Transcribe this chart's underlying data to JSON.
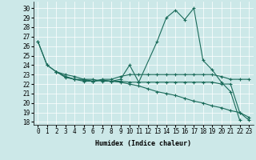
{
  "xlabel": "Humidex (Indice chaleur)",
  "bg_color": "#cce8e8",
  "grid_color": "#ffffff",
  "line_color": "#1a6b5a",
  "xlim": [
    -0.5,
    23.5
  ],
  "ylim": [
    17.7,
    30.7
  ],
  "yticks": [
    18,
    19,
    20,
    21,
    22,
    23,
    24,
    25,
    26,
    27,
    28,
    29,
    30
  ],
  "xticks": [
    0,
    1,
    2,
    3,
    4,
    5,
    6,
    7,
    8,
    9,
    10,
    11,
    12,
    13,
    14,
    15,
    16,
    17,
    18,
    19,
    20,
    21,
    22,
    23
  ],
  "lines": [
    {
      "x": [
        0,
        1,
        2,
        3,
        4,
        5,
        6,
        7,
        8,
        9,
        10,
        11,
        13,
        14,
        15,
        16,
        17,
        18,
        19,
        20,
        21,
        22
      ],
      "y": [
        26.5,
        24.0,
        23.3,
        22.8,
        22.5,
        22.3,
        22.3,
        22.4,
        22.3,
        22.5,
        24.0,
        22.2,
        26.5,
        29.0,
        29.8,
        28.8,
        30.0,
        24.5,
        23.5,
        22.2,
        21.2,
        18.2
      ]
    },
    {
      "x": [
        0,
        1,
        2,
        3,
        4,
        5,
        6,
        7,
        8,
        9,
        10,
        11,
        12,
        13,
        14,
        15,
        16,
        17,
        18,
        19,
        20,
        21,
        22,
        23
      ],
      "y": [
        26.5,
        24.0,
        23.3,
        22.7,
        22.5,
        22.4,
        22.3,
        22.4,
        22.3,
        22.3,
        22.2,
        22.2,
        22.2,
        22.2,
        22.2,
        22.2,
        22.2,
        22.2,
        22.2,
        22.2,
        22.0,
        22.0,
        19.0,
        18.2
      ]
    },
    {
      "x": [
        2,
        3,
        4,
        5,
        6,
        7,
        8,
        9,
        10,
        11,
        12,
        13,
        14,
        15,
        16,
        17,
        18,
        19,
        20,
        21,
        22,
        23
      ],
      "y": [
        23.3,
        22.8,
        22.5,
        22.5,
        22.3,
        22.5,
        22.5,
        22.8,
        23.0,
        23.0,
        23.0,
        23.0,
        23.0,
        23.0,
        23.0,
        23.0,
        23.0,
        23.0,
        22.8,
        22.5,
        22.5,
        22.5
      ]
    },
    {
      "x": [
        2,
        3,
        4,
        5,
        6,
        7,
        8,
        9,
        10,
        11,
        12,
        13,
        14,
        15,
        16,
        17,
        18,
        19,
        20,
        21,
        22,
        23
      ],
      "y": [
        23.3,
        23.0,
        22.8,
        22.5,
        22.5,
        22.3,
        22.3,
        22.2,
        22.0,
        21.8,
        21.5,
        21.2,
        21.0,
        20.8,
        20.5,
        20.2,
        20.0,
        19.7,
        19.5,
        19.2,
        19.0,
        18.5
      ]
    }
  ]
}
